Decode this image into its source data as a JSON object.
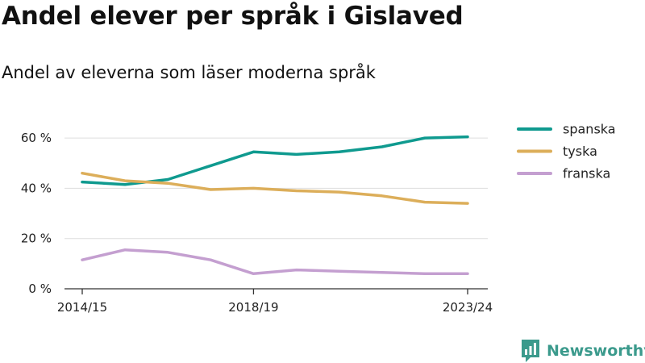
{
  "header": {
    "title": "Andel elever per språk i Gislaved",
    "subtitle": "Andel av eleverna som läser moderna språk"
  },
  "brand": {
    "name": "Newsworthy",
    "icon": "newsworthy-logo-icon",
    "color": "#3b9a8c"
  },
  "chart_data": {
    "type": "line",
    "title": "Andel elever per språk i Gislaved",
    "subtitle": "Andel av eleverna som läser moderna språk",
    "xlabel": "",
    "ylabel": "",
    "x": [
      "2014/15",
      "2015/16",
      "2016/17",
      "2017/18",
      "2018/19",
      "2019/20",
      "2020/21",
      "2021/22",
      "2022/23",
      "2023/24"
    ],
    "x_tick_labels": [
      "2014/15",
      "2018/19",
      "2023/24"
    ],
    "y_ticks": [
      0,
      20,
      40,
      60
    ],
    "y_tick_labels": [
      "0 %",
      "20 %",
      "40 %",
      "60 %"
    ],
    "ylim": [
      0,
      70
    ],
    "grid": true,
    "legend_position": "right",
    "series": [
      {
        "name": "spanska",
        "color": "#0f9a8f",
        "values": [
          42.5,
          41.5,
          43.5,
          49,
          54.5,
          53.5,
          54.5,
          56.5,
          60,
          60.5
        ]
      },
      {
        "name": "tyska",
        "color": "#dcae5a",
        "values": [
          46,
          43,
          42,
          39.5,
          40,
          39,
          38.5,
          37,
          34.5,
          34
        ]
      },
      {
        "name": "franska",
        "color": "#c49fd0",
        "values": [
          11.5,
          15.5,
          14.5,
          11.5,
          6,
          7.5,
          7,
          6.5,
          6,
          6
        ]
      }
    ]
  }
}
